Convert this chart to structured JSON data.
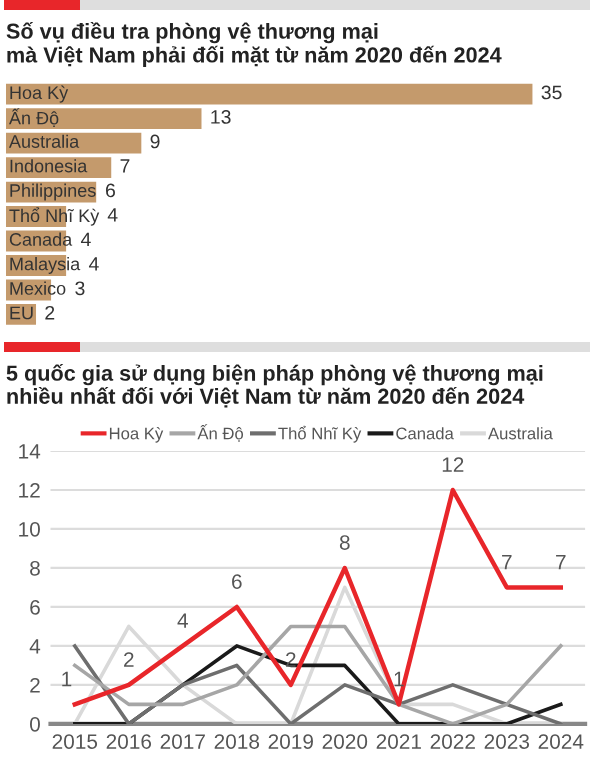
{
  "chart_data": [
    {
      "type": "bar",
      "orientation": "horizontal",
      "title": "Số vụ điều tra phòng vệ thương mại\nmà Việt Nam phải đối mặt từ năm 2020 đến 2024",
      "categories": [
        "Hoa Kỳ",
        "Ấn Độ",
        "Australia",
        "Indonesia",
        "Philippines",
        "Thổ Nhĩ Kỳ",
        "Canada",
        "Malaysia",
        "Mexico",
        "EU"
      ],
      "values": [
        35,
        13,
        9,
        7,
        6,
        4,
        4,
        4,
        3,
        2
      ],
      "color": "#c49a6c",
      "data_labels": true
    },
    {
      "type": "line",
      "title": "5 quốc gia sử dụng biện pháp phòng vệ thương mại\nnhiều nhất đối với Việt Nam từ năm 2020 đến 2024",
      "categories": [
        "2015",
        "2016",
        "2017",
        "2018",
        "2019",
        "2020",
        "2021",
        "2022",
        "2023",
        "2024"
      ],
      "series": [
        {
          "name": "Hoa Kỳ",
          "color": "#e8262a",
          "values": [
            1,
            2,
            4,
            6,
            2,
            8,
            1,
            12,
            7,
            7
          ],
          "value_labels": [
            "1",
            "2",
            "4",
            "6",
            "2",
            "8",
            "1",
            "12",
            "7",
            "7"
          ]
        },
        {
          "name": "Ấn Độ",
          "color": "#a6a6a6",
          "values": [
            3,
            1,
            1,
            2,
            5,
            5,
            1,
            0,
            1,
            4
          ]
        },
        {
          "name": "Thổ Nhĩ Kỳ",
          "color": "#6e6e6e",
          "values": [
            4,
            0,
            2,
            3,
            0,
            2,
            1,
            2,
            1,
            0
          ]
        },
        {
          "name": "Canada",
          "color": "#1a1a1a",
          "values": [
            0,
            0,
            2,
            4,
            3,
            3,
            0,
            0,
            0,
            1
          ]
        },
        {
          "name": "Australia",
          "color": "#d9d9d9",
          "values": [
            0,
            5,
            2,
            0,
            0,
            7,
            1,
            1,
            0,
            0
          ]
        }
      ],
      "ylim": [
        0,
        14
      ],
      "yticks": [
        0,
        2,
        4,
        6,
        8,
        10,
        12,
        14
      ],
      "grid": "y",
      "legend": "top",
      "marker": "none",
      "line_style": "solid"
    }
  ]
}
